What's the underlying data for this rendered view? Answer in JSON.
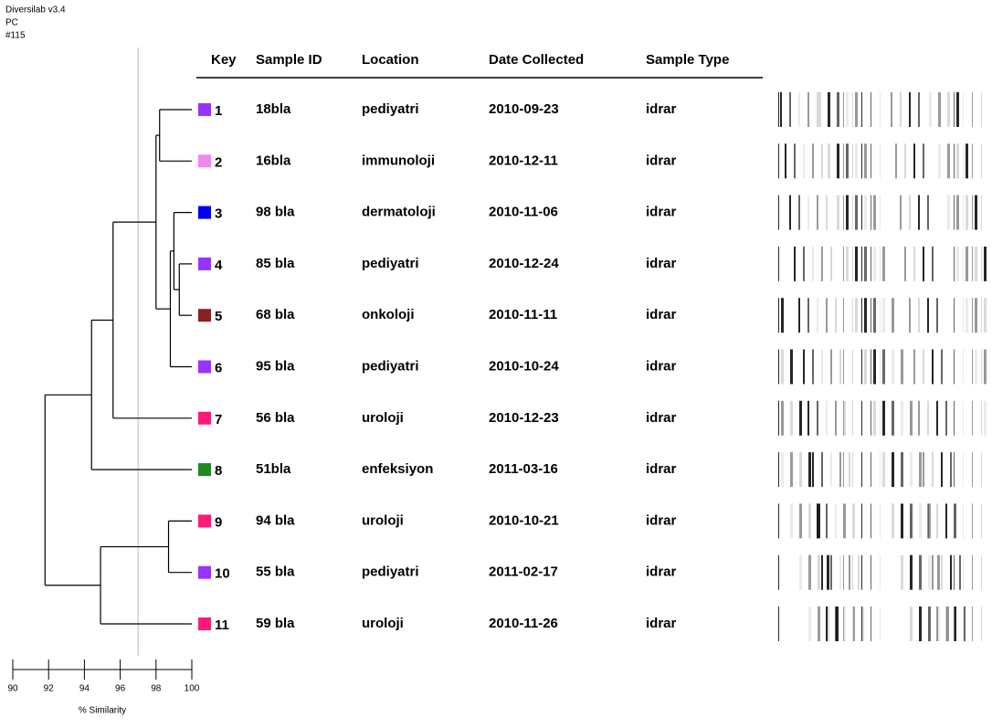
{
  "header": {
    "software": "Diversilab v3.4",
    "kind": "PC",
    "run": "#115"
  },
  "columns": {
    "key": "Key",
    "sample_id": "Sample ID",
    "location": "Location",
    "date": "Date Collected",
    "sample_type": "Sample Type"
  },
  "scale": {
    "label": "% Similarity",
    "xlim": [
      90,
      100
    ],
    "ticks": [
      90,
      92,
      94,
      96,
      98,
      100
    ],
    "cutoff": 97
  },
  "tree": {
    "similarity": 91.8,
    "children": [
      {
        "similarity": 94.4,
        "children": [
          {
            "similarity": 95.6,
            "children": [
              {
                "similarity": 98.0,
                "children": [
                  {
                    "similarity": 98.2,
                    "children": [
                      {
                        "key": "1",
                        "color": "#9933ff",
                        "sample_id": "18bla",
                        "location": "pediyatri",
                        "date": "2010-09-23",
                        "sample_type": "idrar"
                      },
                      {
                        "key": "2",
                        "color": "#ee88ee",
                        "sample_id": "16bla",
                        "location": "immunoloji",
                        "date": "2010-12-11",
                        "sample_type": "idrar"
                      }
                    ]
                  },
                  {
                    "similarity": 98.8,
                    "children": [
                      {
                        "similarity": 99.0,
                        "children": [
                          {
                            "key": "3",
                            "color": "#0000ee",
                            "sample_id": "98 bla",
                            "location": "dermatoloji",
                            "date": "2010-11-06",
                            "sample_type": "idrar"
                          },
                          {
                            "similarity": 99.3,
                            "children": [
                              {
                                "key": "4",
                                "color": "#9933ff",
                                "sample_id": "85 bla",
                                "location": "pediyatri",
                                "date": "2010-12-24",
                                "sample_type": "idrar"
                              },
                              {
                                "key": "5",
                                "color": "#882222",
                                "sample_id": "68 bla",
                                "location": "onkoloji",
                                "date": "2010-11-11",
                                "sample_type": "idrar"
                              }
                            ]
                          }
                        ]
                      },
                      {
                        "key": "6",
                        "color": "#9933ff",
                        "sample_id": "95 bla",
                        "location": "pediyatri",
                        "date": "2010-10-24",
                        "sample_type": "idrar"
                      }
                    ]
                  }
                ]
              },
              {
                "key": "7",
                "color": "#ff1a75",
                "sample_id": "56 bla",
                "location": "uroloji",
                "date": "2010-12-23",
                "sample_type": "idrar"
              }
            ]
          },
          {
            "key": "8",
            "color": "#228822",
            "sample_id": "51bla",
            "location": "enfeksiyon",
            "date": "2011-03-16",
            "sample_type": "idrar"
          }
        ]
      },
      {
        "similarity": 94.9,
        "children": [
          {
            "similarity": 98.7,
            "children": [
              {
                "key": "9",
                "color": "#ff1a75",
                "sample_id": "94 bla",
                "location": "uroloji",
                "date": "2010-10-21",
                "sample_type": "idrar"
              },
              {
                "key": "10",
                "color": "#9933ff",
                "sample_id": "55 bla",
                "location": "pediyatri",
                "date": "2011-02-17",
                "sample_type": "idrar"
              }
            ]
          },
          {
            "key": "11",
            "color": "#ff1a75",
            "sample_id": "59 bla",
            "location": "uroloji",
            "date": "2010-11-26",
            "sample_type": "idrar"
          }
        ]
      }
    ]
  }
}
